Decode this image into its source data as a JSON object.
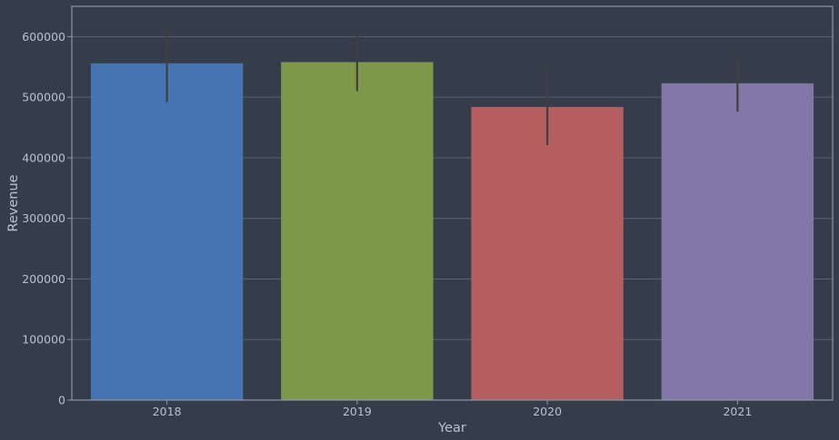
{
  "chart_data": {
    "type": "bar",
    "categories": [
      "2018",
      "2019",
      "2020",
      "2021"
    ],
    "values": [
      556000,
      558000,
      484000,
      523000
    ],
    "error_bars": [
      {
        "low": 492000,
        "high": 615000
      },
      {
        "low": 510000,
        "high": 604000
      },
      {
        "low": 421000,
        "high": 550000
      },
      {
        "low": 476000,
        "high": 567000
      }
    ],
    "xlabel": "Year",
    "ylabel": "Revenue",
    "ylim": [
      0,
      650000
    ],
    "yticks": [
      0,
      100000,
      200000,
      300000,
      400000,
      500000,
      600000
    ],
    "ytick_labels": [
      "0",
      "100000",
      "200000",
      "300000",
      "400000",
      "500000",
      "600000"
    ],
    "grid": true,
    "colors": {
      "background": "#353c4a",
      "bars": [
        "#4674b3",
        "#7e9849",
        "#b55e60",
        "#8377a9"
      ],
      "grid": "#5a6273",
      "axes": "#8f97a8",
      "error_bar": "#3f3f3f"
    }
  }
}
